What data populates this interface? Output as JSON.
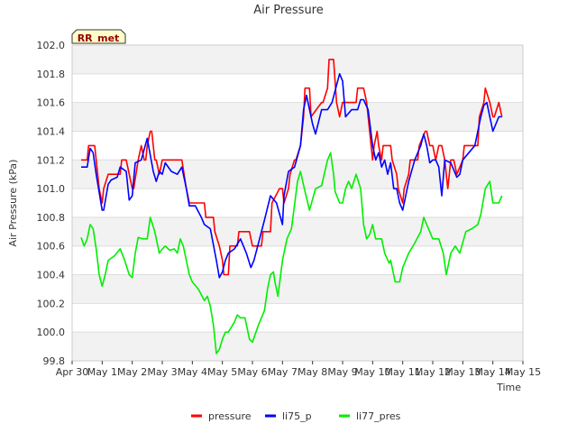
{
  "chart_data": {
    "type": "line",
    "title": "Air Pressure",
    "xlabel": "Time",
    "ylabel": "Air Pressure (kPa)",
    "site_label": "RR_met",
    "ylim": [
      99.8,
      102.0
    ],
    "yticks": [
      99.8,
      100.0,
      100.2,
      100.4,
      100.6,
      100.8,
      101.0,
      101.2,
      101.4,
      101.6,
      101.8,
      102.0
    ],
    "ytick_labels": [
      "99.8",
      "100.0",
      "100.2",
      "100.4",
      "100.6",
      "100.8",
      "101.0",
      "101.2",
      "101.4",
      "101.6",
      "101.8",
      "102.0"
    ],
    "xlim": [
      0,
      15
    ],
    "xticks": [
      0,
      1,
      2,
      3,
      4,
      5,
      6,
      7,
      8,
      9,
      10,
      11,
      12,
      13,
      14,
      15
    ],
    "xtick_labels": [
      "Apr 30",
      "May 1",
      "May 2",
      "May 3",
      "May 4",
      "May 5",
      "May 6",
      "May 7",
      "May 8",
      "May 9",
      "May 10",
      "May 11",
      "May 12",
      "May 13",
      "May 14",
      "May 15"
    ],
    "legend": [
      {
        "name": "pressure",
        "color": "#ff0000"
      },
      {
        "name": "li75_p",
        "color": "#0000ff"
      },
      {
        "name": "li77_pres",
        "color": "#00ee00"
      }
    ],
    "series": [
      {
        "name": "pressure",
        "color": "#ff0000",
        "x": [
          0.3,
          0.5,
          0.55,
          0.75,
          0.8,
          0.9,
          1.0,
          1.05,
          1.2,
          1.3,
          1.6,
          1.65,
          1.8,
          2.0,
          2.05,
          2.2,
          2.3,
          2.4,
          2.45,
          2.5,
          2.6,
          2.65,
          2.75,
          2.8,
          2.9,
          3.0,
          3.1,
          3.2,
          3.3,
          3.6,
          3.65,
          3.8,
          3.9,
          4.0,
          4.05,
          4.4,
          4.45,
          4.7,
          4.75,
          4.9,
          5.0,
          5.05,
          5.2,
          5.25,
          5.5,
          5.55,
          5.9,
          6.0,
          6.05,
          6.3,
          6.35,
          6.6,
          6.65,
          6.9,
          7.0,
          7.05,
          7.2,
          7.25,
          7.4,
          7.45,
          7.6,
          7.7,
          7.75,
          7.9,
          7.95,
          8.3,
          8.35,
          8.5,
          8.55,
          8.7,
          8.8,
          8.9,
          9.0,
          9.05,
          9.2,
          9.3,
          9.45,
          9.5,
          9.7,
          9.8,
          9.9,
          10.0,
          10.05,
          10.15,
          10.2,
          10.3,
          10.35,
          10.6,
          10.65,
          10.8,
          10.85,
          11.0,
          11.05,
          11.2,
          11.25,
          11.5,
          11.55,
          11.75,
          11.8,
          11.9,
          12.0,
          12.1,
          12.2,
          12.3,
          12.4,
          12.5,
          12.6,
          12.7,
          12.8,
          13.0,
          13.05,
          13.1,
          13.2,
          13.5,
          13.55,
          13.7,
          13.75,
          13.9,
          14.0,
          14.05,
          14.2,
          14.3
        ],
        "y": [
          101.2,
          101.2,
          101.3,
          101.3,
          101.2,
          101.0,
          100.9,
          101.0,
          101.1,
          101.1,
          101.1,
          101.2,
          101.2,
          101.0,
          101.0,
          101.2,
          101.3,
          101.2,
          101.2,
          101.3,
          101.4,
          101.4,
          101.2,
          101.2,
          101.1,
          101.2,
          101.2,
          101.2,
          101.2,
          101.2,
          101.2,
          101.0,
          100.9,
          100.9,
          100.9,
          100.9,
          100.8,
          100.8,
          100.7,
          100.6,
          100.5,
          100.4,
          100.4,
          100.6,
          100.6,
          100.7,
          100.7,
          100.6,
          100.6,
          100.6,
          100.7,
          100.7,
          100.9,
          101.0,
          101.0,
          100.9,
          101.0,
          101.1,
          101.2,
          101.2,
          101.3,
          101.5,
          101.7,
          101.7,
          101.5,
          101.6,
          101.6,
          101.7,
          101.9,
          101.9,
          101.6,
          101.5,
          101.6,
          101.6,
          101.6,
          101.6,
          101.6,
          101.7,
          101.7,
          101.6,
          101.4,
          101.2,
          101.3,
          101.4,
          101.3,
          101.2,
          101.3,
          101.3,
          101.2,
          101.1,
          101.0,
          100.9,
          101.0,
          101.1,
          101.2,
          101.2,
          101.3,
          101.4,
          101.4,
          101.3,
          101.3,
          101.2,
          101.3,
          101.3,
          101.2,
          101.0,
          101.2,
          101.2,
          101.1,
          101.2,
          101.3,
          101.3,
          101.3,
          101.3,
          101.5,
          101.6,
          101.7,
          101.6,
          101.5,
          101.5,
          101.6,
          101.5
        ]
      },
      {
        "name": "li75_p",
        "color": "#0000ff",
        "x": [
          0.3,
          0.5,
          0.6,
          0.7,
          0.8,
          1.0,
          1.05,
          1.2,
          1.3,
          1.5,
          1.6,
          1.8,
          1.9,
          2.0,
          2.1,
          2.3,
          2.5,
          2.7,
          2.8,
          2.9,
          3.0,
          3.1,
          3.3,
          3.5,
          3.65,
          3.8,
          3.9,
          4.1,
          4.3,
          4.4,
          4.6,
          4.8,
          4.9,
          5.0,
          5.1,
          5.2,
          5.4,
          5.6,
          5.8,
          5.95,
          6.05,
          6.2,
          6.4,
          6.6,
          6.8,
          7.0,
          7.05,
          7.2,
          7.4,
          7.6,
          7.7,
          7.8,
          8.0,
          8.1,
          8.3,
          8.5,
          8.65,
          8.8,
          8.9,
          9.0,
          9.1,
          9.3,
          9.5,
          9.6,
          9.7,
          9.85,
          10.0,
          10.1,
          10.2,
          10.3,
          10.4,
          10.5,
          10.6,
          10.7,
          10.8,
          10.9,
          11.0,
          11.2,
          11.4,
          11.6,
          11.7,
          11.8,
          11.9,
          12.0,
          12.1,
          12.2,
          12.3,
          12.4,
          12.6,
          12.8,
          12.9,
          13.0,
          13.2,
          13.4,
          13.6,
          13.7,
          13.8,
          13.9,
          14.0,
          14.1,
          14.2,
          14.3
        ],
        "y": [
          101.15,
          101.15,
          101.28,
          101.25,
          101.1,
          100.85,
          100.85,
          101.03,
          101.06,
          101.08,
          101.15,
          101.12,
          100.92,
          100.95,
          101.18,
          101.2,
          101.35,
          101.12,
          101.05,
          101.12,
          101.1,
          101.18,
          101.12,
          101.1,
          101.15,
          101.0,
          100.88,
          100.88,
          100.8,
          100.75,
          100.72,
          100.5,
          100.38,
          100.42,
          100.5,
          100.55,
          100.58,
          100.65,
          100.55,
          100.45,
          100.5,
          100.62,
          100.78,
          100.95,
          100.9,
          100.75,
          100.95,
          101.12,
          101.15,
          101.3,
          101.55,
          101.65,
          101.45,
          101.38,
          101.55,
          101.55,
          101.6,
          101.72,
          101.8,
          101.75,
          101.5,
          101.55,
          101.55,
          101.62,
          101.62,
          101.55,
          101.3,
          101.2,
          101.25,
          101.15,
          101.2,
          101.1,
          101.18,
          101.0,
          101.0,
          100.9,
          100.85,
          101.05,
          101.2,
          101.3,
          101.38,
          101.3,
          101.18,
          101.2,
          101.2,
          101.15,
          100.95,
          101.2,
          101.18,
          101.08,
          101.1,
          101.2,
          101.25,
          101.3,
          101.5,
          101.58,
          101.6,
          101.5,
          101.4,
          101.45,
          101.5,
          101.5
        ]
      },
      {
        "name": "li77_pres",
        "color": "#00ee00",
        "x": [
          0.3,
          0.4,
          0.5,
          0.6,
          0.7,
          0.8,
          0.9,
          1.0,
          1.1,
          1.2,
          1.4,
          1.6,
          1.75,
          1.9,
          2.0,
          2.1,
          2.2,
          2.35,
          2.5,
          2.6,
          2.75,
          2.9,
          3.0,
          3.1,
          3.25,
          3.4,
          3.5,
          3.6,
          3.7,
          3.9,
          4.0,
          4.2,
          4.4,
          4.5,
          4.6,
          4.7,
          4.8,
          4.9,
          5.0,
          5.1,
          5.2,
          5.4,
          5.5,
          5.6,
          5.75,
          5.9,
          6.0,
          6.2,
          6.4,
          6.5,
          6.6,
          6.7,
          6.75,
          6.85,
          7.0,
          7.15,
          7.3,
          7.5,
          7.6,
          7.75,
          7.9,
          8.1,
          8.3,
          8.5,
          8.6,
          8.7,
          8.75,
          8.9,
          9.0,
          9.1,
          9.2,
          9.3,
          9.45,
          9.6,
          9.7,
          9.8,
          9.9,
          10.0,
          10.1,
          10.3,
          10.4,
          10.55,
          10.6,
          10.75,
          10.9,
          11.0,
          11.2,
          11.4,
          11.6,
          11.7,
          11.8,
          11.9,
          12.0,
          12.2,
          12.35,
          12.45,
          12.6,
          12.75,
          12.9,
          13.1,
          13.3,
          13.5,
          13.6,
          13.75,
          13.9,
          14.0,
          14.2,
          14.3
        ],
        "y": [
          100.66,
          100.6,
          100.65,
          100.75,
          100.72,
          100.58,
          100.4,
          100.32,
          100.4,
          100.5,
          100.53,
          100.58,
          100.5,
          100.4,
          100.38,
          100.55,
          100.66,
          100.65,
          100.65,
          100.8,
          100.7,
          100.55,
          100.58,
          100.6,
          100.57,
          100.58,
          100.55,
          100.65,
          100.6,
          100.4,
          100.35,
          100.3,
          100.22,
          100.25,
          100.18,
          100.05,
          99.85,
          99.88,
          99.95,
          100.0,
          100.0,
          100.07,
          100.12,
          100.1,
          100.1,
          99.95,
          99.93,
          100.05,
          100.15,
          100.3,
          100.4,
          100.42,
          100.35,
          100.25,
          100.5,
          100.65,
          100.72,
          101.05,
          101.12,
          100.98,
          100.85,
          101.0,
          101.02,
          101.2,
          101.25,
          101.1,
          100.98,
          100.9,
          100.9,
          101.0,
          101.05,
          101.0,
          101.1,
          101.0,
          100.75,
          100.65,
          100.68,
          100.75,
          100.65,
          100.65,
          100.55,
          100.48,
          100.5,
          100.35,
          100.35,
          100.45,
          100.55,
          100.62,
          100.7,
          100.8,
          100.75,
          100.7,
          100.65,
          100.65,
          100.55,
          100.4,
          100.55,
          100.6,
          100.55,
          100.7,
          100.72,
          100.75,
          100.82,
          101.0,
          101.05,
          100.9,
          100.9,
          100.95
        ]
      }
    ]
  }
}
